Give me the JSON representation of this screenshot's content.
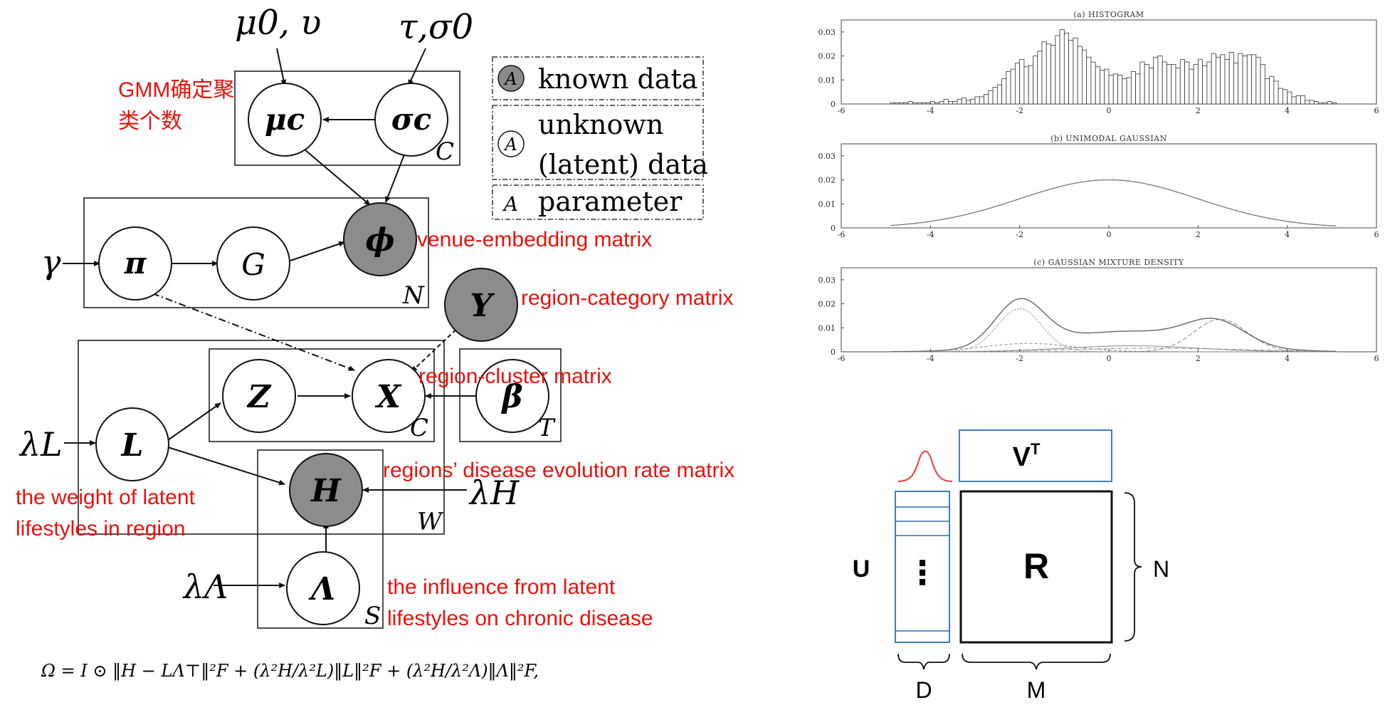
{
  "pgm": {
    "hyper_mu": "μ0, υ",
    "hyper_tau": "τ,σ0",
    "node_mu": "μc",
    "node_sigma": "σc",
    "plate_c_top": "C",
    "node_pi": "π",
    "node_G": "G",
    "node_phi": "ϕ",
    "plate_N": "N",
    "gamma": "γ",
    "node_Y": "Y",
    "node_Z": "Z",
    "node_X": "X",
    "plate_c_mid": "C",
    "node_beta": "β",
    "plate_T": "T",
    "lambda_L": "λL",
    "node_L": "L",
    "node_H": "H",
    "lambda_H": "λH",
    "plate_W": "W",
    "lambda_Lambda": "λΛ",
    "node_Lambda": "Λ",
    "plate_S": "S",
    "formula": "Ω = I ⊙ ‖H − LΛ⊤‖²F + (λ²H/λ²L)‖L‖²F + (λ²H/λ²Λ)‖Λ‖²F,"
  },
  "legend": {
    "symbol": "A",
    "known": "known data",
    "unknown_1": "unknown",
    "unknown_2": "(latent) data",
    "param": "parameter"
  },
  "annotations": {
    "gmm_1": "GMM确定聚",
    "gmm_2": "类个数",
    "venue": "venue-embedding matrix",
    "region_category": "region-category matrix",
    "region_cluster": "region-cluster matrix",
    "disease_rate": "regions’ disease evolution rate matrix",
    "weight_1": "the weight of latent",
    "weight_2": "lifestyles in region",
    "influence_1": "the influence from latent",
    "influence_2": "lifestyles on chronic disease"
  },
  "plots": {
    "histogram_title": "(a) HISTOGRAM",
    "unimodal_title": "(b) UNIMODAL GAUSSIAN",
    "mixture_title": "(c) GAUSSIAN MIXTURE DENSITY",
    "x_ticks": [
      "-6",
      "-4",
      "-2",
      "0",
      "2",
      "4",
      "6"
    ],
    "y_ticks": [
      "0",
      "0.01",
      "0.02",
      "0.03"
    ],
    "histogram_heights": [
      0.0005,
      0.0005,
      0.0005,
      0.0005,
      0.001,
      0.0005,
      0.0005,
      0.0005,
      0.0005,
      0.001,
      0.0005,
      0.001,
      0.002,
      0.001,
      0.001,
      0.002,
      0.0025,
      0.0015,
      0.002,
      0.003,
      0.003,
      0.004,
      0.0055,
      0.007,
      0.008,
      0.0105,
      0.0135,
      0.0145,
      0.017,
      0.0185,
      0.0155,
      0.016,
      0.02,
      0.022,
      0.026,
      0.025,
      0.0245,
      0.0285,
      0.031,
      0.0295,
      0.0265,
      0.0275,
      0.024,
      0.0225,
      0.0195,
      0.0175,
      0.0155,
      0.014,
      0.0145,
      0.012,
      0.0125,
      0.012,
      0.0105,
      0.011,
      0.0135,
      0.0125,
      0.0175,
      0.0165,
      0.015,
      0.0195,
      0.02,
      0.0175,
      0.0165,
      0.0165,
      0.015,
      0.0185,
      0.0175,
      0.0145,
      0.0165,
      0.0185,
      0.016,
      0.0175,
      0.021,
      0.0195,
      0.0205,
      0.0185,
      0.0215,
      0.017,
      0.021,
      0.02,
      0.0205,
      0.0205,
      0.0195,
      0.0165,
      0.0105,
      0.0115,
      0.0095,
      0.0065,
      0.006,
      0.005,
      0.003,
      0.0035,
      0.0035,
      0.0015,
      0.0015,
      0.001,
      0.0005,
      0.0005,
      0.001,
      0.0005
    ]
  },
  "svd": {
    "U": "U",
    "V": "V",
    "T": "T",
    "R": "R",
    "N": "N",
    "D": "D",
    "M": "M",
    "dots": "⋮"
  },
  "colors": {
    "annotation_red": "#e8120c",
    "observed_fill": "#8c8c8c",
    "svd_blue": "#2e6db4",
    "gauss_red": "#e54b4b"
  }
}
